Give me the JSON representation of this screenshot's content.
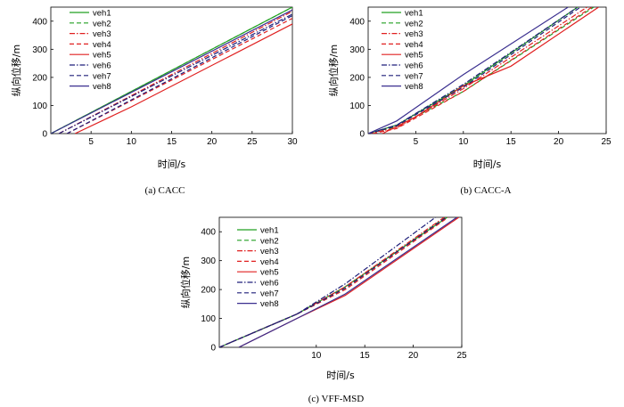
{
  "chart_data": [
    {
      "type": "line",
      "caption": "(a)  CACC",
      "xlabel": "时间/s",
      "ylabel": "纵向位移/m",
      "xlim": [
        0,
        30
      ],
      "ylim": [
        0,
        450
      ],
      "xticks": [
        5,
        10,
        15,
        20,
        25,
        30
      ],
      "yticks": [
        0,
        100,
        200,
        300,
        400
      ],
      "legend_position": "top-left",
      "series": [
        {
          "name": "veh1",
          "color": "#22a022",
          "dash": "solid",
          "x": [
            0,
            30
          ],
          "y": [
            0,
            450
          ]
        },
        {
          "name": "veh2",
          "color": "#22a022",
          "dash": "dashed",
          "x": [
            0,
            30
          ],
          "y": [
            0,
            450
          ]
        },
        {
          "name": "veh3",
          "color": "#e02020",
          "dash": "dashdot",
          "x": [
            1,
            30
          ],
          "y": [
            0,
            435
          ]
        },
        {
          "name": "veh4",
          "color": "#e02020",
          "dash": "dashed",
          "x": [
            2,
            30
          ],
          "y": [
            0,
            410
          ]
        },
        {
          "name": "veh5",
          "color": "#e02020",
          "dash": "solid",
          "x": [
            3,
            10,
            30
          ],
          "y": [
            0,
            95,
            390
          ]
        },
        {
          "name": "veh6",
          "color": "#1f1f7a",
          "dash": "dashdot",
          "x": [
            1,
            30
          ],
          "y": [
            0,
            425
          ]
        },
        {
          "name": "veh7",
          "color": "#1f1f7a",
          "dash": "dashed",
          "x": [
            2,
            30
          ],
          "y": [
            0,
            420
          ]
        },
        {
          "name": "veh8",
          "color": "#3a2f8f",
          "dash": "solid",
          "x": [
            0,
            30
          ],
          "y": [
            0,
            440
          ]
        }
      ]
    },
    {
      "type": "line",
      "caption": "(b)  CACC-A",
      "xlabel": "时间/s",
      "ylabel": "纵向位移/m",
      "xlim": [
        0,
        25
      ],
      "ylim": [
        0,
        450
      ],
      "xticks": [
        5,
        10,
        15,
        20,
        25
      ],
      "yticks": [
        0,
        100,
        200,
        300,
        400
      ],
      "legend_position": "top-left",
      "series": [
        {
          "name": "veh1",
          "color": "#22a022",
          "dash": "solid",
          "x": [
            0,
            3,
            10,
            22
          ],
          "y": [
            0,
            30,
            170,
            450
          ]
        },
        {
          "name": "veh2",
          "color": "#22a022",
          "dash": "dashed",
          "x": [
            0,
            3,
            10,
            23.7
          ],
          "y": [
            0,
            25,
            150,
            450
          ]
        },
        {
          "name": "veh3",
          "color": "#e02020",
          "dash": "dashdot",
          "x": [
            0,
            3,
            10,
            23
          ],
          "y": [
            0,
            20,
            160,
            450
          ]
        },
        {
          "name": "veh4",
          "color": "#e02020",
          "dash": "dashed",
          "x": [
            0.5,
            3,
            10,
            23.5
          ],
          "y": [
            0,
            18,
            150,
            450
          ]
        },
        {
          "name": "veh5",
          "color": "#e02020",
          "dash": "solid",
          "x": [
            1.5,
            5,
            10,
            15,
            24.2
          ],
          "y": [
            0,
            60,
            170,
            240,
            450
          ]
        },
        {
          "name": "veh6",
          "color": "#1f1f7a",
          "dash": "dashdot",
          "x": [
            0,
            3,
            10,
            22
          ],
          "y": [
            0,
            30,
            175,
            450
          ]
        },
        {
          "name": "veh7",
          "color": "#1f1f7a",
          "dash": "dashed",
          "x": [
            0,
            3,
            10,
            22.3
          ],
          "y": [
            0,
            28,
            165,
            450
          ]
        },
        {
          "name": "veh8",
          "color": "#3a2f8f",
          "dash": "solid",
          "x": [
            0,
            3,
            10,
            21
          ],
          "y": [
            0,
            45,
            210,
            450
          ]
        }
      ]
    },
    {
      "type": "line",
      "caption": "(c)  VFF-MSD",
      "xlabel": "时间/s",
      "ylabel": "纵向位移/m",
      "xlim": [
        0,
        25
      ],
      "ylim": [
        0,
        450
      ],
      "xticks": [
        10,
        15,
        20,
        25
      ],
      "yticks": [
        0,
        100,
        200,
        300,
        400
      ],
      "legend_position": "top-left",
      "series": [
        {
          "name": "veh1",
          "color": "#22a022",
          "dash": "solid",
          "x": [
            0,
            8,
            13,
            23.5
          ],
          "y": [
            0,
            115,
            210,
            450
          ]
        },
        {
          "name": "veh2",
          "color": "#22a022",
          "dash": "dashed",
          "x": [
            0,
            8,
            13,
            23.3
          ],
          "y": [
            0,
            115,
            205,
            450
          ]
        },
        {
          "name": "veh3",
          "color": "#e02020",
          "dash": "dashdot",
          "x": [
            0,
            8,
            13,
            23.2
          ],
          "y": [
            0,
            115,
            210,
            450
          ]
        },
        {
          "name": "veh4",
          "color": "#e02020",
          "dash": "dashed",
          "x": [
            0,
            8,
            13,
            23.6
          ],
          "y": [
            0,
            115,
            200,
            450
          ]
        },
        {
          "name": "veh5",
          "color": "#e02020",
          "dash": "solid",
          "x": [
            2,
            8,
            13,
            24.7
          ],
          "y": [
            0,
            100,
            180,
            450
          ]
        },
        {
          "name": "veh6",
          "color": "#1f1f7a",
          "dash": "dashdot",
          "x": [
            0,
            8,
            13,
            22.3
          ],
          "y": [
            0,
            115,
            220,
            450
          ]
        },
        {
          "name": "veh7",
          "color": "#1f1f7a",
          "dash": "dashed",
          "x": [
            0,
            8,
            13,
            23.4
          ],
          "y": [
            0,
            115,
            205,
            450
          ]
        },
        {
          "name": "veh8",
          "color": "#3a2f8f",
          "dash": "solid",
          "x": [
            2,
            8,
            13,
            24.5
          ],
          "y": [
            0,
            100,
            185,
            450
          ]
        }
      ]
    }
  ]
}
